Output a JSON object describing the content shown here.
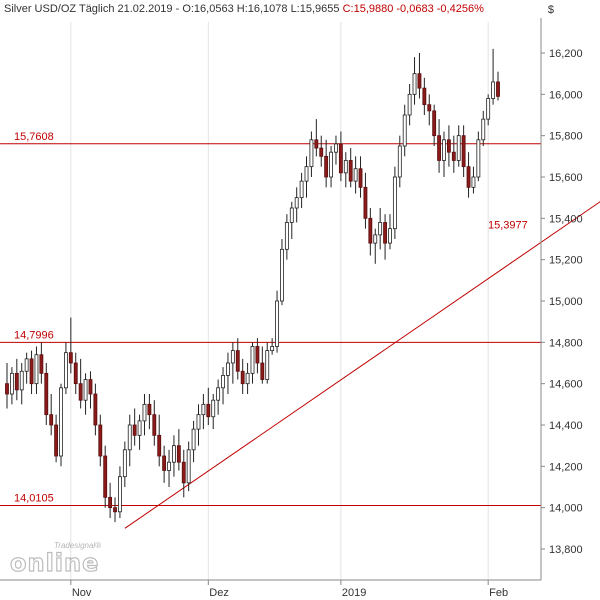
{
  "header": {
    "text": "Silver USD/OZ Täglich  21.02.2019 - O:16,0563 H:16,1078 L:15,9655",
    "change": "C:15,9880 -0,0683 -0,4256%"
  },
  "currency_symbol": "$",
  "logo": {
    "brand": "Tradesignal®",
    "word": "online"
  },
  "chart_data": {
    "type": "candlestick",
    "title": "Silver USD/OZ Täglich",
    "ylim": [
      13.65,
      16.35
    ],
    "y_ticks": [
      "13,800",
      "14,000",
      "14,200",
      "14,400",
      "14,600",
      "14,800",
      "15,000",
      "15,200",
      "15,400",
      "15,600",
      "15,800",
      "16,000",
      "16,200"
    ],
    "y_tick_values": [
      13.8,
      14.0,
      14.2,
      14.4,
      14.6,
      14.8,
      15.0,
      15.2,
      15.4,
      15.6,
      15.8,
      16.0,
      16.2
    ],
    "x_ticks": [
      "Nov",
      "Dez",
      "2019",
      "Feb"
    ],
    "x_tick_index": [
      13,
      41,
      68,
      98
    ],
    "horizontal_levels": [
      {
        "value": 15.7608,
        "label": "15,7608"
      },
      {
        "value": 14.7996,
        "label": "14,7996"
      },
      {
        "value": 14.0105,
        "label": "14,0105"
      }
    ],
    "trendline": {
      "label": "15,3977",
      "start": [
        24,
        13.9
      ],
      "end": [
        122,
        15.5
      ]
    },
    "candles": [
      [
        14.6,
        14.7,
        14.48,
        14.55
      ],
      [
        14.55,
        14.68,
        14.5,
        14.65
      ],
      [
        14.65,
        14.72,
        14.52,
        14.57
      ],
      [
        14.57,
        14.7,
        14.5,
        14.66
      ],
      [
        14.66,
        14.75,
        14.6,
        14.72
      ],
      [
        14.72,
        14.76,
        14.55,
        14.6
      ],
      [
        14.6,
        14.78,
        14.55,
        14.74
      ],
      [
        14.74,
        14.8,
        14.6,
        14.65
      ],
      [
        14.65,
        14.7,
        14.4,
        14.45
      ],
      [
        14.45,
        14.55,
        14.35,
        14.4
      ],
      [
        14.4,
        14.45,
        14.22,
        14.25
      ],
      [
        14.25,
        14.6,
        14.2,
        14.58
      ],
      [
        14.58,
        14.8,
        14.55,
        14.75
      ],
      [
        14.75,
        14.92,
        14.65,
        14.7
      ],
      [
        14.7,
        14.75,
        14.55,
        14.6
      ],
      [
        14.6,
        14.72,
        14.48,
        14.52
      ],
      [
        14.52,
        14.65,
        14.45,
        14.62
      ],
      [
        14.62,
        14.66,
        14.48,
        14.55
      ],
      [
        14.55,
        14.6,
        14.35,
        14.4
      ],
      [
        14.4,
        14.45,
        14.2,
        14.25
      ],
      [
        14.25,
        14.3,
        14.0,
        14.05
      ],
      [
        14.05,
        14.12,
        13.95,
        14.0
      ],
      [
        14.0,
        14.05,
        13.93,
        13.98
      ],
      [
        13.98,
        14.2,
        13.95,
        14.15
      ],
      [
        14.15,
        14.32,
        14.1,
        14.28
      ],
      [
        14.28,
        14.45,
        14.2,
        14.4
      ],
      [
        14.4,
        14.48,
        14.3,
        14.35
      ],
      [
        14.35,
        14.45,
        14.28,
        14.42
      ],
      [
        14.42,
        14.55,
        14.35,
        14.5
      ],
      [
        14.5,
        14.55,
        14.38,
        14.45
      ],
      [
        14.45,
        14.52,
        14.3,
        14.35
      ],
      [
        14.35,
        14.45,
        14.2,
        14.25
      ],
      [
        14.25,
        14.3,
        14.12,
        14.18
      ],
      [
        14.18,
        14.28,
        14.1,
        14.22
      ],
      [
        14.22,
        14.35,
        14.15,
        14.3
      ],
      [
        14.3,
        14.38,
        14.18,
        14.22
      ],
      [
        14.22,
        14.28,
        14.05,
        14.12
      ],
      [
        14.12,
        14.32,
        14.08,
        14.28
      ],
      [
        14.28,
        14.42,
        14.22,
        14.38
      ],
      [
        14.38,
        14.5,
        14.3,
        14.45
      ],
      [
        14.45,
        14.55,
        14.38,
        14.5
      ],
      [
        14.5,
        14.58,
        14.4,
        14.44
      ],
      [
        14.44,
        14.55,
        14.38,
        14.52
      ],
      [
        14.52,
        14.62,
        14.45,
        14.58
      ],
      [
        14.58,
        14.68,
        14.5,
        14.64
      ],
      [
        14.64,
        14.75,
        14.55,
        14.7
      ],
      [
        14.7,
        14.8,
        14.6,
        14.76
      ],
      [
        14.76,
        14.82,
        14.62,
        14.66
      ],
      [
        14.66,
        14.72,
        14.55,
        14.6
      ],
      [
        14.6,
        14.7,
        14.55,
        14.65
      ],
      [
        14.65,
        14.8,
        14.6,
        14.78
      ],
      [
        14.78,
        14.82,
        14.65,
        14.7
      ],
      [
        14.7,
        14.78,
        14.6,
        14.62
      ],
      [
        14.62,
        14.8,
        14.6,
        14.76
      ],
      [
        14.76,
        14.82,
        14.74,
        14.78
      ],
      [
        14.78,
        15.05,
        14.75,
        15.0
      ],
      [
        15.0,
        15.3,
        14.98,
        15.25
      ],
      [
        15.25,
        15.42,
        15.2,
        15.38
      ],
      [
        15.38,
        15.48,
        15.3,
        15.45
      ],
      [
        15.45,
        15.55,
        15.38,
        15.5
      ],
      [
        15.5,
        15.62,
        15.45,
        15.58
      ],
      [
        15.58,
        15.7,
        15.5,
        15.65
      ],
      [
        15.65,
        15.82,
        15.6,
        15.78
      ],
      [
        15.78,
        15.88,
        15.7,
        15.74
      ],
      [
        15.74,
        15.8,
        15.65,
        15.7
      ],
      [
        15.7,
        15.78,
        15.55,
        15.6
      ],
      [
        15.6,
        15.75,
        15.55,
        15.72
      ],
      [
        15.72,
        15.8,
        15.66,
        15.76
      ],
      [
        15.76,
        15.82,
        15.58,
        15.62
      ],
      [
        15.62,
        15.72,
        15.55,
        15.68
      ],
      [
        15.68,
        15.74,
        15.55,
        15.58
      ],
      [
        15.58,
        15.7,
        15.52,
        15.64
      ],
      [
        15.64,
        15.7,
        15.5,
        15.55
      ],
      [
        15.55,
        15.62,
        15.35,
        15.4
      ],
      [
        15.4,
        15.45,
        15.22,
        15.28
      ],
      [
        15.28,
        15.35,
        15.18,
        15.32
      ],
      [
        15.32,
        15.45,
        15.25,
        15.38
      ],
      [
        15.38,
        15.42,
        15.2,
        15.28
      ],
      [
        15.28,
        15.42,
        15.25,
        15.35
      ],
      [
        15.35,
        15.65,
        15.3,
        15.6
      ],
      [
        15.6,
        15.8,
        15.55,
        15.75
      ],
      [
        15.75,
        15.95,
        15.7,
        15.9
      ],
      [
        15.9,
        16.05,
        15.85,
        16.0
      ],
      [
        16.0,
        16.18,
        15.95,
        16.1
      ],
      [
        16.1,
        16.2,
        15.98,
        16.03
      ],
      [
        16.03,
        16.08,
        15.9,
        15.95
      ],
      [
        15.95,
        16.0,
        15.85,
        15.92
      ],
      [
        15.92,
        15.95,
        15.75,
        15.8
      ],
      [
        15.8,
        15.88,
        15.62,
        15.68
      ],
      [
        15.68,
        15.82,
        15.6,
        15.78
      ],
      [
        15.78,
        15.85,
        15.65,
        15.72
      ],
      [
        15.72,
        15.8,
        15.62,
        15.68
      ],
      [
        15.68,
        15.85,
        15.65,
        15.8
      ],
      [
        15.8,
        15.85,
        15.6,
        15.65
      ],
      [
        15.65,
        15.72,
        15.5,
        15.55
      ],
      [
        15.55,
        15.65,
        15.52,
        15.6
      ],
      [
        15.6,
        15.82,
        15.58,
        15.78
      ],
      [
        15.78,
        15.92,
        15.75,
        15.88
      ],
      [
        15.88,
        16.0,
        15.85,
        15.98
      ],
      [
        15.98,
        16.22,
        15.95,
        16.06
      ],
      [
        16.06,
        16.11,
        15.97,
        15.99
      ]
    ]
  }
}
